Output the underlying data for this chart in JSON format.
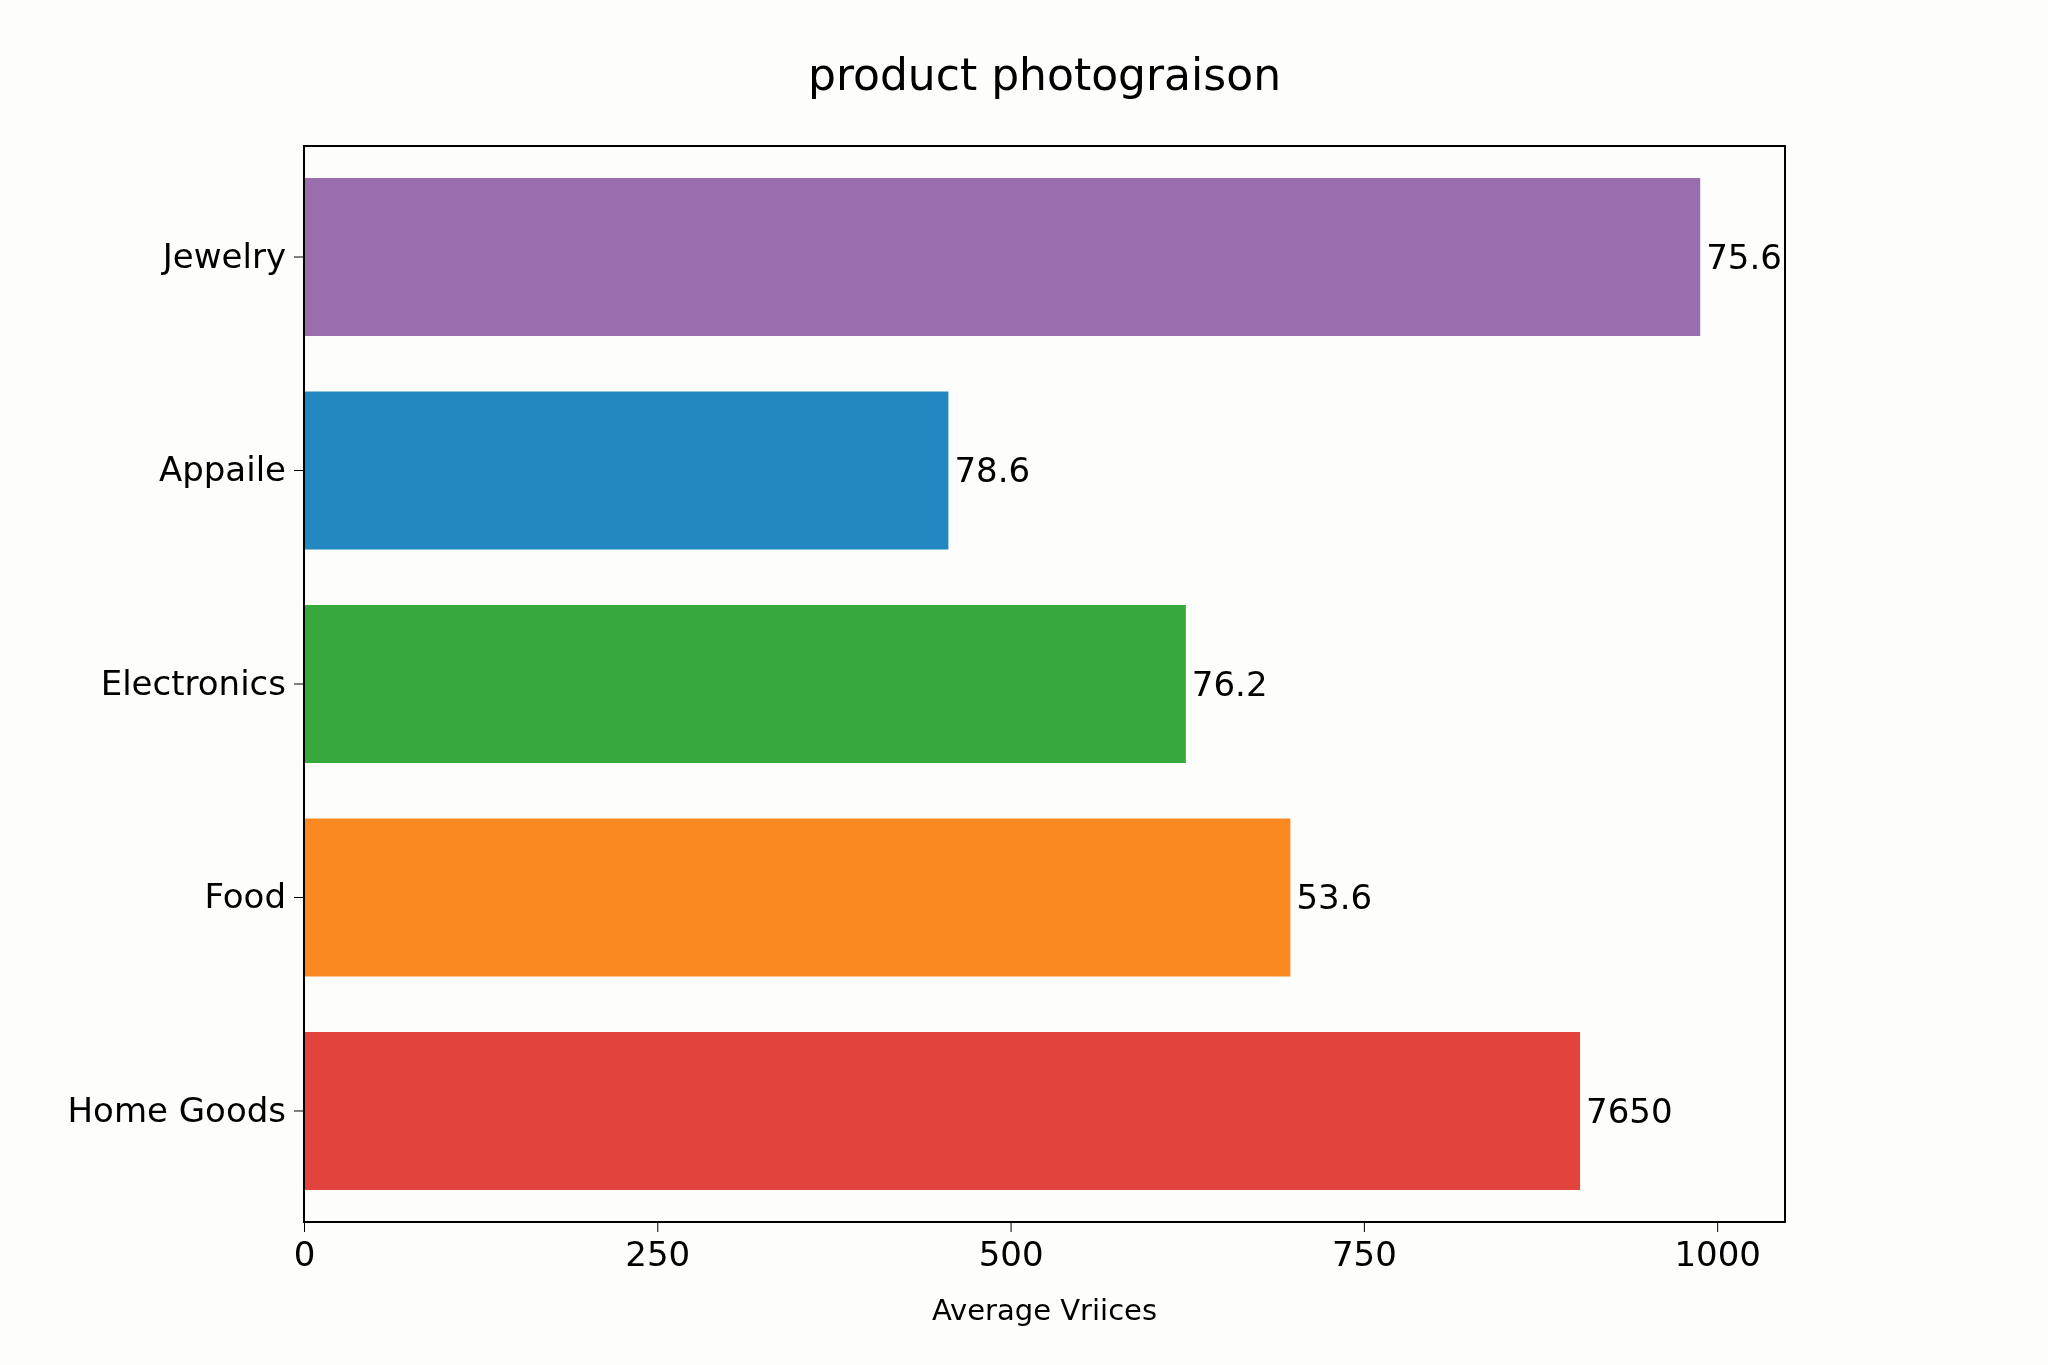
{
  "chart_data": {
    "type": "bar",
    "orientation": "horizontal",
    "title": "product photograison",
    "xlabel": "Average Vriices",
    "categories": [
      "Jewelry",
      "Appaile",
      "Electronics",
      "Food",
      "Home Goods"
    ],
    "values": [
      988,
      456,
      624,
      698,
      903
    ],
    "colors": [
      "#9a6eae",
      "#2388c2",
      "#36a83c",
      "#fa8921",
      "#e2433d"
    ],
    "annotations": [
      {
        "text": "75.6",
        "x": 988,
        "y": "Jewelry"
      },
      {
        "text": "78.6",
        "x": 456,
        "y": "Appaile"
      },
      {
        "text": "76.2",
        "x": 624,
        "y": "Electronics"
      },
      {
        "text": "53.6",
        "x": 698,
        "y": "Food"
      },
      {
        "text": "7650",
        "x": 903,
        "y": "Home Goods"
      }
    ],
    "xlim": [
      0,
      1048
    ],
    "xticks": [
      0,
      250,
      500,
      750,
      1000
    ],
    "grid": false
  }
}
